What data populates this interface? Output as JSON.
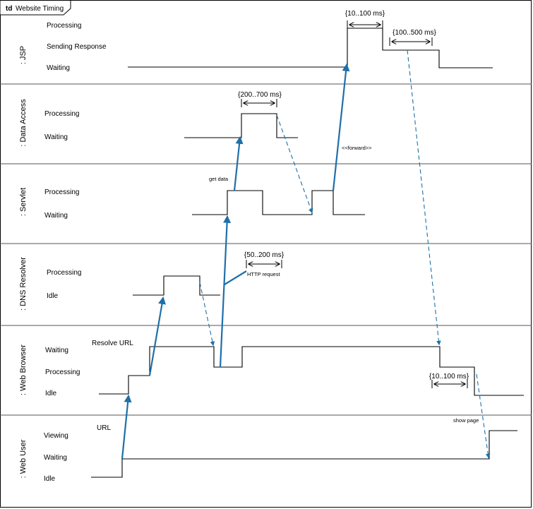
{
  "frame": {
    "keyword": "td",
    "title": "Website Timing"
  },
  "lanes": [
    {
      "name": ": JSP",
      "states": [
        "Processing",
        "Sending Response",
        "Waiting"
      ]
    },
    {
      "name": ": Data Access",
      "states": [
        "Processing",
        "Waiting"
      ]
    },
    {
      "name": ": Servlet",
      "states": [
        "Processing",
        "Waiting"
      ]
    },
    {
      "name": ": DNS Resolver",
      "states": [
        "Processing",
        "Idle"
      ]
    },
    {
      "name": ": Web Browser",
      "states": [
        "Waiting",
        "Processing",
        "Idle"
      ]
    },
    {
      "name": ": Web User",
      "states": [
        "Viewing",
        "Waiting",
        "Idle"
      ]
    }
  ],
  "durations": [
    "{10..100 ms}",
    "{100..500 ms}",
    "{200..700 ms}",
    "{50..200 ms}",
    "{10..100 ms}"
  ],
  "messages": {
    "url": "URL",
    "resolve_url": "Resolve URL",
    "http_request": "HTTP request",
    "get_data": "get data",
    "forward": "<<forward>>",
    "show_page": "show page"
  },
  "colors": {
    "message": "#1f6fa8",
    "timeline": "#000000"
  }
}
